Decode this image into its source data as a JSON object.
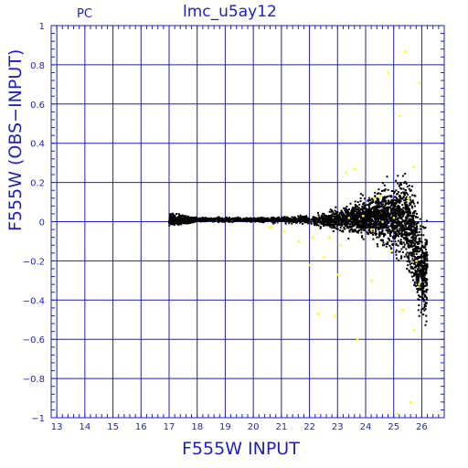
{
  "chart_data": {
    "type": "scatter",
    "title": "lmc_u5ay12",
    "panel_label": "PC",
    "xlabel": "F555W INPUT",
    "ylabel": "F555W (OBS−INPUT)",
    "xlim": [
      12.8,
      26.8
    ],
    "ylim": [
      -1,
      1
    ],
    "x_ticks": [
      13,
      14,
      15,
      16,
      17,
      18,
      19,
      20,
      21,
      22,
      23,
      24,
      25,
      26
    ],
    "y_ticks": [
      -1,
      -0.8,
      -0.6,
      -0.4,
      -0.2,
      0,
      0.2,
      0.4,
      0.6,
      0.8,
      1
    ],
    "y_tick_labels": [
      "−1",
      "−0.8",
      "−0.6",
      "−0.4",
      "−0.2",
      "0",
      "0.2",
      "0.4",
      "0.6",
      "0.8",
      "1"
    ],
    "grid": true,
    "colors": {
      "axes": "#1f1fbf",
      "points": "#000000",
      "highlight": "#ffff00"
    },
    "series": [
      {
        "color": "#000000",
        "description_range": {
          "x_min": 17.0,
          "x_max": 26.2
        },
        "profile": [
          {
            "x": 17.0,
            "y_center": 0.01,
            "y_spread": 0.04
          },
          {
            "x": 18.0,
            "y_center": 0.01,
            "y_spread": 0.015
          },
          {
            "x": 20.0,
            "y_center": 0.01,
            "y_spread": 0.015
          },
          {
            "x": 22.0,
            "y_center": 0.01,
            "y_spread": 0.03
          },
          {
            "x": 23.0,
            "y_center": 0.01,
            "y_spread": 0.07
          },
          {
            "x": 24.0,
            "y_center": 0.02,
            "y_spread": 0.12
          },
          {
            "x": 25.0,
            "y_center": 0.03,
            "y_spread": 0.2
          },
          {
            "x": 25.5,
            "y_center": 0.0,
            "y_spread": 0.32
          },
          {
            "x": 26.0,
            "y_center": -0.25,
            "y_spread": 0.3
          }
        ]
      },
      {
        "color": "#ffff00",
        "points": [
          [
            22.3,
            -0.47
          ],
          [
            22.9,
            -0.48
          ],
          [
            23.1,
            -0.12
          ],
          [
            22.5,
            -0.18
          ],
          [
            22.0,
            -0.22
          ],
          [
            21.6,
            -0.1
          ],
          [
            21.1,
            -0.05
          ],
          [
            20.6,
            -0.03
          ],
          [
            23.3,
            0.25
          ],
          [
            23.6,
            0.27
          ],
          [
            23.9,
            0.03
          ],
          [
            24.2,
            -0.04
          ],
          [
            24.5,
            0.13
          ],
          [
            24.8,
            0.76
          ],
          [
            25.2,
            0.54
          ],
          [
            25.4,
            0.87
          ],
          [
            25.5,
            0.12
          ],
          [
            25.7,
            0.28
          ],
          [
            25.8,
            -0.2
          ],
          [
            25.9,
            -0.32
          ],
          [
            25.3,
            -0.45
          ],
          [
            24.9,
            -0.15
          ],
          [
            24.2,
            -0.3
          ],
          [
            23.7,
            -0.6
          ],
          [
            25.1,
            -0.98
          ],
          [
            25.6,
            -0.92
          ],
          [
            23.4,
            0.02
          ],
          [
            22.7,
            -0.08
          ],
          [
            24.6,
            0.0
          ],
          [
            25.0,
            0.02
          ],
          [
            25.9,
            0.71
          ],
          [
            24.3,
            0.12
          ],
          [
            23.0,
            -0.27
          ],
          [
            22.1,
            -0.08
          ],
          [
            25.7,
            -0.55
          ]
        ]
      }
    ]
  }
}
